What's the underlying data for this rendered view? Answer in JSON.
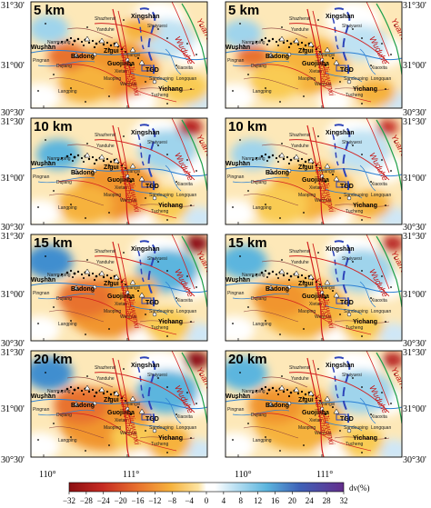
{
  "panels": [
    {
      "depth": "5 km"
    },
    {
      "depth": "5 km"
    },
    {
      "depth": "10 km"
    },
    {
      "depth": "10 km"
    },
    {
      "depth": "15 km"
    },
    {
      "depth": "15 km"
    },
    {
      "depth": "20 km"
    },
    {
      "depth": "20 km"
    }
  ],
  "axes": {
    "lat_labels": [
      "31°30'",
      "31°00'",
      "30°30'"
    ],
    "lon_labels": [
      "110°",
      "111°"
    ]
  },
  "place_names": {
    "xingshan": "Xingshan",
    "badong": "Badong",
    "zigui": "Zigui",
    "guojiaba": "Guojiaba",
    "yichang": "Yichang",
    "wushan": "Wushan",
    "tgd": "TGD",
    "shuiyuesi": "Shuiyuesi",
    "longquan": "Longquan",
    "sandouping": "Sandouping",
    "huanglingmiao": "Huanglingmiao",
    "maoping": "Maoping",
    "tucheng": "Tucheng",
    "xiaoxita": "Xiaoxita",
    "yanduhe": "Yanduhe",
    "nanmuping": "Nanmuping",
    "pingnan": "Pingnan",
    "dujiang": "Dujiang",
    "langping": "Langping",
    "shazhenxi": "Shazhenxi",
    "xietan": "Xietan",
    "wenhua": "Wenhua",
    "xiangxi": "Xiangxi"
  },
  "faults": {
    "xiannvshan": "Xiannvshan",
    "jiuwanxi": "Jiuwanxi",
    "wuduhe": "Wuduhe",
    "yuan_an": "Yuan'an"
  },
  "colorbar": {
    "ticks": [
      "-32",
      "-28",
      "-24",
      "-20",
      "-16",
      "-12",
      "-8",
      "-4",
      "0",
      "4",
      "8",
      "12",
      "16",
      "20",
      "24",
      "28",
      "32"
    ],
    "unit": "dv(%)",
    "colors": [
      "#8c0f12",
      "#b51a1a",
      "#d4452e",
      "#e8722f",
      "#f1952f",
      "#f6b23d",
      "#f9cb52",
      "#fde3a0",
      "#ffffff",
      "#ffffff",
      "#cfe7f7",
      "#9fd4ec",
      "#5bb5de",
      "#3f8ecf",
      "#3f61b7",
      "#5646a3",
      "#642e8c"
    ]
  }
}
